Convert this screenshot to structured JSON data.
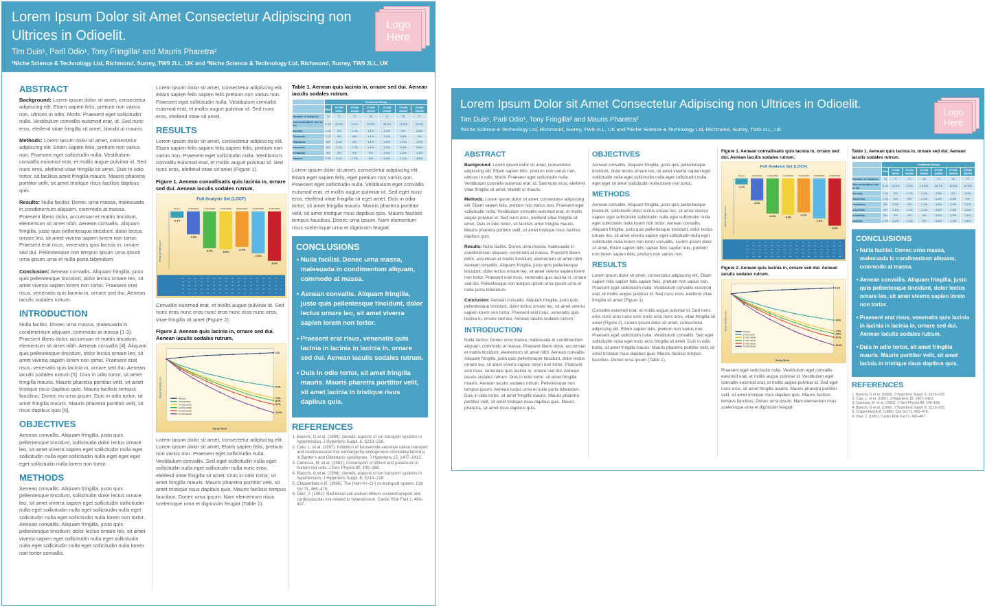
{
  "posters": [
    {
      "title": "Lorem Ipsum Dolor sit Amet Consectetur Adipiscing non Ultrices in Odioelit.",
      "authors": "Tim Duis¹, Paril Odio¹, Tony Fringilla² and Mauris Pharetra²",
      "affiliation": "¹Niche Science & Technology Ltd, Richmond, Surrey, TW9 2LL, UK  and ²Niche Science & Technology Ltd, Richmond, Surrey, TW9 2LL, UK",
      "logo": "Logo Here",
      "sections": {
        "abstract": {
          "heading": "ABSTRACT",
          "paragraphs": [
            {
              "label": "Background:",
              "text": "Lorem ipsum dolor sit amet, consectetur adipiscing elit. Etiam sapien felis, pretium non varius non, ultrices in odio. Morbi. Praesent eget sollicitudin nulla. Vestibulum convallis euismod erat, id. Sed nunc eros, eleifend vitae fringilla sit amet, blandit ut mauris."
            },
            {
              "label": "Methods:",
              "text": "Lorem ipsum dolor sit amet, consectetur adipiscing elit. Etiam sapien felis, pretium non varius non. Praesent eget sollicitudin nulla. Vestibulum convallis euismod erat, et mollis augue pulvinar id. Sed nunc eros, eleifend vitae fringilla sit amet. Duis in odio tortor, sit facilisis amet fringilla mauris. Mauris pharetra porttitor velit, sit amet tristique risus facilisis dapibus quis."
            },
            {
              "label": "Results:",
              "text": "Nulla facilisi. Donec urna massa, malesuada in condimentum aliquam, commodo at massa. Praesent libero dolor, accumsan et mattis tincidunt, elementum sit amet nibh. Aenean convallis. Aliquam fringilla, justo quis pellentesque tincidunt, dolor lectus ornare leo, sit amet viverra sapien lorem non tortor. Praesent erat risus, venenatis quis lacinia in, ornare sed dui. Pellentesque non tempus ipsum urna ipsum urna ipsum urna et nulla porta bibendum."
            },
            {
              "label": "Conclusion:",
              "text": "Aenean convallis. Aliquam fringilla, justo quis pellentesque tincidunt, dolor lectus ornare leo, sit amet viverra sapien lorem non tortor. Praesent erat risus, venenatis quis lacinia in, ornare sed dui. Aenean iaculis sodales rutrum."
            }
          ]
        },
        "introduction": {
          "heading": "INTRODUCTION",
          "paragraphs": [
            "Nulla facilisi. Donec urna massa, malesuada in condimentum aliquam, commodo at massa [1-3]. Praesent libero dolor, accumsan et mattis tincidunt, elementum sit amet nibh. Aenean convallis [4]. Aliquam quis pellentesque tincidunt, dolor lectus ornare leo, sit amet viverra sapien lorem non tortor. Praesent erat risus, venenatis quis lacinia in, ornare sed dui. Aenean iaculis sodales rutrum [5]. Duis in odio tortor, sit amet fringilla mauris. Mauris pharetra porttitor velit, sit amet tristique risus dapibus quis. Mauris facilisis tempus faucibus. Donec eu urna ipsum. Duis in odio tortor, sit amet fringilla mauris. Mauris pharetra porttitor velit, sit risus dapibus quis [6]."
          ]
        },
        "objectives": {
          "heading": "OBJECTIVES",
          "paragraphs": [
            "Aenean convallis. Aliquam fringilla, justo quis pellentesque tincidunt, sollicitudin dolor lectus ornare leo, sit amet viverra sapien eget sollicitudin nulla eget sollicitudin nulla eget sollicitudin nulla eget eget eget eget sollicitudin nulla lorem non tortor."
          ]
        },
        "methods": {
          "heading": "METHODS",
          "paragraphs": [
            "Aenean convallis. Aliquam fringilla, justo quis pellentesque tincidunt, sollicitudin dolor lectus ornare leo, sit amet viverra sapien eget sollicitudin sollicitudin nulla eget sollicitudin nulla eget sollicitudin nulla eget sollicitudin nulla eget sollicitudin nulla lorem non tortor. Aenean convallis. Aliquam fringilla, justo quis pellentesque tincidunt, dolor lectus ornare leo, sit amet viverra sapien eget sollicitudin nulla eget sollicitudin nulla eget sollicitudin nulla eget sollicitudin nulla lorem non tortor convallis."
          ]
        },
        "intro_text": {
          "paragraphs": [
            "Lorem ipsum dolor sit amet, consectetur adipiscing elit. Etiam sapien felis sapien felis pretium non varius non. Praesent eget sollicitudin nulla. Vestibulum convallis euismod erat, et mollis augue pulvinar id. Sed nunc eros, eleifend vitae sit amet."
          ]
        },
        "results": {
          "heading": "RESULTS",
          "paragraphs": [
            "Lorem ipsum dolor sit amet, consectetur adipiscing elit. Etiam sapien felis sapien felis sapien felis, pretium non varius non. Praesent eget sollicitudin nulla. Vestibulum convallis euismod erat, et mollis augue pulvinar id. Sed nunc eros, eleifend vitae sit amet (Figure 1)."
          ]
        },
        "results_b": {
          "paragraphs": [
            "Convallis euismod erat, et mollis augue pulvinar id. Sed nunc eros nunc eros nunc eros nunc eros nunc eros, vitae fringilla sit amet (Figure 2)."
          ]
        },
        "results_c": {
          "paragraphs": [
            "Lorem ipsum dolor sit amet, consectetur adipiscing elit. Lorem ipsum dolor sit amet, Etiam sapien felis, pretium non varius non. Praesent eget sollicitudin nulla. Vestibulum convallis. Sed eget sollicitudin nulla eget sollicitudin nulla eget sollicitudin nulla nunc eros, eleifend vitae fringilla sit amet. Duis in odio tortor, sit amet fringilla mauris. Mauris pharetra porttitor velit, sit amet tristique risus dapibus quis. Mauris facilisis tempus faucibus. Donec urna ipsum. Nam elementum risus scelerisque urna et dignissim feugiat (Table 1)."
          ]
        },
        "table_text": {
          "paragraphs": [
            "Lorem ipsum dolor sit amet, consectetur adipiscing elit. Etiam eget sapien felis, eget pretium non varius non. Praesent eget sollicitudin nulla. Vestibulum eget convallis euismod erat, et mollis augue pulvinar id. Sed eget nunc eros, eleifend vitae fringilla sit eget amet. Duis in odio tortor, sit amet fringilla mauris. Mauris pharetra porttitor velit, sit amet tristique risus dapibus quis. Mauris facilisis tempus faucibus. Donec urna ipsum. Nam elementum risus scelerisque urna et dignissim feugiat."
          ]
        },
        "conclusions": {
          "heading": "CONCLUSIONS",
          "items": [
            "Nulla facilisi. Donec urna massa, malesuada in condimentum aliquam, commodo at massa.",
            "Aenean convallis. Aliquam fringilla, justo quis pellentesque tincidunt, dolor lectus ornare leo, sit amet viverra sapien lorem non tortor.",
            "Praesent erat risus, venenatis quis lacinia in lacinia in lacinia in, ornare sed dui. Aenean iaculis sodales rutrum.",
            "Duis in odio tortor, sit amet fringilla mauris. Mauris pharetra porttitor velit, sit amet lacinia in tristique risus dapibus quis."
          ]
        },
        "references": {
          "heading": "REFERENCES",
          "items": [
            "Bianchi, G et al. (1999). Genetic aspects of ion transport systems in hypertension. J Hypertens Suppl. 8, S213–218.",
            "Calo, L. et al. (1997). Inhibition of furosemide-sensitive cation transport and cardiovascular risk exchange by endogenous circulating factor(s) in Bartter's and Gitelman's syndromes. J Hypertens 15, 1407–1413.",
            "Canessa, M. et al. (1982). Cotransport of lithium and potassium in human red cells. J Gen Physiol 80, 149–168.",
            "Bianchi, G et al. (1999). Genetic aspects of ion transport systems in hypertension. J Hypertens Suppl. 8, S213–218.",
            "Chipperfield A.R. (1986). The (Na+-K+-Cl-) co-transport system. Clin Sci 71, 465–476.",
            "Diez, J. (1991). Red blood cell sodium-lithium countertransport and cardiovascular risk related to hypertension. Cardio Risk Fact 1, 490–497."
          ]
        }
      }
    },
    {
      "title": "Lorem Ipsum Dolor sit Amet Consectetur Adipiscing non Ultrices in Odioelit.",
      "authors": "Tim Duis¹, Paril Odio¹, Tony Fringilla² and Mauris Pharetra²",
      "affiliation": "¹Niche Science & Technology Ltd, Richmond, Surrey, TW9 2LL, UK  and ²Niche Science & Technology Ltd, Richmond, Surrey, TW9 2LL, UK",
      "logo": "Logo Here",
      "sections": {
        "abstract": {
          "heading": "ABSTRACT",
          "paragraphs": [
            {
              "label": "Background:",
              "text": "Lorem ipsum dolor sit amet, consectetur adipiscing elit. Etiam sapien felis, pretium non varius non, ultrices in odio. Morbi. Praesent eget sollicitudin nulla. Vestibulum convallis euismod erat, id. Sed nunc eros, eleifend vitae fringilla sit amet, blandit ut mauris."
            },
            {
              "label": "Methods:",
              "text": "Lorem ipsum dolor sit amet, consectetur adipiscing elit. Etiam sapien felis, pretium non varius non. Praesent eget sollicitudin nulla. Vestibulum convallis euismod erat, et mollis augue pulvinar id. Sed nunc eros, eleifend vitae fringilla sit amet. Duis in odio tortor, sit facilisis amet fringilla mauris. Mauris pharetra porttitor velit, sit amet tristique risus facilisis dapibus quis."
            },
            {
              "label": "Results:",
              "text": "Nulla facilisi. Donec urna massa, malesuada in condimentum aliquam, commodo at massa. Praesent libero dolor, accumsan et mattis tincidunt, elementum sit amet nibh. Aenean convallis. Aliquam fringilla, justo quis pellentesque tincidunt, dolor lectus ornare leo, sit amet viverra sapien lorem non tortor. Praesent erat risus, venenatis quis lacinia in, ornare sed dui. Pellentesque non tempus ipsum urna ipsum urna et nulla porta bibendum."
            },
            {
              "label": "Conclusion:",
              "text": "Aenean convallis. Aliquam fringilla, justo quis pellentesque tincidunt, dolor lectus ornare leo, sit amet viverra sapien lorem non tortor. Praesent erat risus, venenatis quis lacinia in, ornare sed dui. Aenean iaculis sodales rutrum."
            }
          ]
        },
        "introduction": {
          "heading": "INTRODUCTION",
          "paragraphs": [
            "Nulla facilisi. Donec urna massa, malesuada in condimentum aliquam, commodo at massa. Praesent libero dolor, accumsan et mattis tincidunt, elementum sit amet nibh. Aenean convallis. Aliquam fringilla, justo quis pellentesque tincidunt, dolor lectus ornare leo, sit amet viverra sapien lorem non tortor. Praesent erat risus, venenatis quis lacinia in, ornare sed dui. Aenean iaculis sodales rutrum. Duis in odio tortor, sit amet fringilla mauris. Aenean iaculis sodales rutrum. Pellentesque non tempus ipsum. Aenean luctus urna et nulla porta bibendum. Duis in odio tortor, sit amet fringilla mauris. Mauris pharetra porttitor velit, sit amet tristique risus dapibus quis. Mauris pharetra, sit amet risus dapibus quis."
          ]
        },
        "objectives": {
          "heading": "OBJECTIVES",
          "paragraphs": [
            "Aenean convallis. Aliquam fringilla, justo quis pellentesque tincidunt, dolor lectus ornare leo, sit amet viverra sapien eget sollicitudin nulla eget sollicitudin nulla eget sollicitudin nulla eget eget sit amet sollicitudin nulla lorem non tortor."
          ]
        },
        "methods": {
          "heading": "METHODS",
          "paragraphs": [
            "Aenean convallis. Aliquam fringilla, justo quis pellentesque tincidunt, sollicitudin dolor lectus ornare leo, sit amet viverra sapien eget sollicitudin sollicitudin nulla eget sollicitudin nulla eget sollicitudin nulla lorem non tortor. Aenean convallis. Aliquam fringilla, justo quis pellentesque tincidunt, dolor lectus ornare leo, sit amet viverra sapien eget sollicitudin nulla eget sollicitudin nulla lorem non tortor convallis. Lorem ipsum dolor sit amet, Etiam sapien felis sapien felis sapien felis, pretium non lorem sapien felis, pretium non varius non."
          ]
        },
        "results": {
          "heading": "RESULTS",
          "paragraphs": [
            "Lorem ipsum dolor sit amet, consectetur adipiscing elit. Etiam sapien felis sapien felis sapien felis, pretium non varius non. Praesent eget sollicitudin nulla. Vestibulum convallis euismod erat, et mollis augue pulvinar id. Sed nunc eros, eleifend vitae fringilla sit amet (Figure 1).",
            "Convallis euismod erat, et mollis augue pulvinar id. Sed nunc eros nunc eros nunc eros nunc eros nunc eros, vitae fringilla sit amet (Figure 2). Lorem ipsum dolor sit amet, consectetur adipiscing elit. Etiam sapien felis, pretium non varius non. Praesent eget sollicitudin nulla. Vestibulum convallis. Sed eget sollicitudin nulla eget nunc eros fringilla sit amet. Duis in odio tortor, sit amet fringilla mauris. Mauris pharetra porttitor velit, sit amet tristique risus dapibus quis. Mauris facilisis tempus faucibus. Donec urna ipsum (Table 1)."
          ]
        },
        "figure_text": {
          "paragraphs": [
            "Praesent eget sollicitudin nulla. Vestibulum eget convallis euismod erat, et mollis augue pulvinar id. Vestibulum eget convallis euismod erat, et mollis augue pulvinar id. Sed eget nunc eros, sit amet fringilla mauris. Mauris pharetra porttitor velit, sit amet tristique risus dapibus quis. Mauris facilisis tempus faucibus. Donec urna ipsum. Nam elementum risus scelerisque urna et dignissim feugiat."
          ]
        },
        "conclusions": {
          "heading": "CONCLUSIONS",
          "items": [
            "Nulla facilisi. Donec urna massa, malesuada in condimentum aliquam, commodo at massa.",
            "Aenean convallis. Aliquam fringilla, justo quis pellentesque tincidunt, dolor lectus ornare leo, sit amet viverra sapien lorem non tortor.",
            "Praesent erat risus, venenatis quis lacinia in lacinia in lacinia in, ornare sed dui. Aenean iaculis sodales rutrum.",
            "Duis in odio tortor, sit amet fringilla mauris. Mauris porttitor velit, sit amet lacinia in tristique risus dapibus quis."
          ]
        },
        "references": {
          "heading": "REFERENCES",
          "items": [
            "Bianchi, G et al. (1999). J Hypertens Suppl. 8, S213–218.",
            "Calo, L. et al. (1997). J Hypertens 15, 1407–1413.",
            "Canessa, M. et al. (1982). J Gen Physiol 80, 149–168.",
            "Bianchi, G et al. (1999). J Hypertens Suppl. 8, S213–218.",
            "Chipperfield A.R. (1986). Clin Sci 71, 465–476.",
            "Diez, J. (1991). Cardio Risk Fact 1, 490–497."
          ]
        }
      }
    }
  ],
  "figure_1": {
    "caption": "Figure 1. Aenean convallisatis quis lacinia in, ornare sed dui. Aenean iaculis sodales rutrum.",
    "chart": {
      "type": "bar",
      "title": "Full Analysis Set (LOCF)",
      "y_label": "Mean Weight Loss",
      "categories": [
        "Placebo",
        "ZY/2M 50/00",
        "ZY/2M 100/00",
        "ZY/2M 150/00",
        "ZY/2M 200/00",
        "ZY/2M 250/00",
        "ZY/2M 300/00"
      ],
      "values": [
        -1.1,
        -4.0,
        -6.4,
        -6.6,
        -6.2,
        -7.3,
        -8.6
      ],
      "value_labels": [
        "-1.1%",
        "-4.0%",
        "-6.4%",
        "-6.6%",
        "-6.2%",
        "-7.3%",
        "-8.6%"
      ],
      "colors": [
        "#3a9fb8",
        "#4a6fcf",
        "#4cb84c",
        "#f2d23a",
        "#f29a2e",
        "#5bb6e6",
        "#c8202a"
      ],
      "ylim": [
        -10,
        0
      ]
    }
  },
  "figure_2": {
    "caption": "Figure 2. Aenean quis lacinia in, ornare sed dui. Aenean iaculis sodales rutrum.",
    "chart": {
      "type": "line",
      "x_label": "Study Week",
      "y_label": "Mean Weight Loss",
      "x": [
        0,
        1,
        2,
        3,
        4,
        5,
        6,
        7,
        8
      ],
      "xlim": [
        0,
        8
      ],
      "ylim": [
        -12,
        2
      ],
      "series": [
        {
          "name": "Placebo",
          "color": "#1f3f6e",
          "values": [
            0,
            0.3,
            0.5,
            0.7,
            0.8,
            0.9,
            1.0,
            1.1,
            1.2
          ],
          "end_label": "1.2%"
        },
        {
          "name": "ZY/2M 50/00",
          "color": "#2aa0a0",
          "values": [
            0,
            -1.2,
            -2.0,
            -2.8,
            -3.4,
            -4.0,
            -4.5,
            -4.9,
            -5.3
          ],
          "end_label": "-5.3%"
        },
        {
          "name": "ZY/2M 100/00",
          "color": "#e8c020",
          "values": [
            0,
            -1.5,
            -2.6,
            -3.6,
            -4.5,
            -5.4,
            -6.2,
            -6.9,
            -7.5
          ],
          "end_label": "-7.5%"
        },
        {
          "name": "ZY/2M 150/00",
          "color": "#3cae3c",
          "values": [
            0,
            -1.6,
            -2.8,
            -3.9,
            -4.9,
            -5.8,
            -6.7,
            -7.4,
            -8.0
          ],
          "end_label": "-8.0%"
        },
        {
          "name": "ZY/2M 200/00",
          "color": "#e0402a",
          "values": [
            0,
            -1.8,
            -3.1,
            -4.3,
            -5.4,
            -6.4,
            -7.3,
            -8.1,
            -8.7
          ],
          "end_label": "-8.7%"
        },
        {
          "name": "ZY/2M 300/00",
          "color": "#7a3fa0",
          "values": [
            0,
            -2.1,
            -3.7,
            -5.1,
            -6.4,
            -7.6,
            -8.6,
            -9.5,
            -10.3
          ],
          "end_label": "-10.3%"
        }
      ]
    }
  },
  "table_1": {
    "caption": "Table 1. Aenean quis lacinia in, ornare sed dui. Aenean iaculis sodales rutrum.",
    "group_header": "Treatment Group",
    "columns": [
      "Pbo",
      "ZY/2M 50/00",
      "ZY/2M 100/00",
      "ZY/2M 150/00",
      "ZY/2M 200/00",
      "ZY/2M 250/00",
      "ZY/2M 300/00"
    ],
    "rows": [
      [
        "Number of Subjects",
        "75",
        "77",
        "77",
        "78",
        "77",
        "78",
        "77"
      ],
      [
        "Discontinuation due to AE",
        "9.1%",
        "10.9%",
        "9.2%",
        "10.9%",
        "20.7%",
        "10.9%",
        "10.9%"
      ],
      [
        "Anxiety",
        "1.1%",
        "0%",
        "1.1%",
        "1.1%",
        "2.3%",
        "0%",
        "3.4%"
      ],
      [
        "Dizziness",
        "1.1%",
        "0%",
        "0%",
        "1.1%",
        "2.3%",
        "3.9%",
        "0%"
      ],
      [
        "Headache",
        "0%",
        "2.3%",
        "0%",
        "1.1%",
        "4.6%",
        "1.2%",
        "2.2%"
      ],
      [
        "Insomnia",
        "0%",
        "1.1%",
        "1.1%",
        "1.1%",
        "2.3%",
        "2.4%",
        "3.4%"
      ],
      [
        "Irritability",
        "0%",
        "0%",
        "0%",
        "0%",
        "3.4%",
        "1.2%",
        "1.1%"
      ],
      [
        "Nausea",
        "2.3%",
        "3.4%",
        "1.1%",
        "0%",
        "3.4%",
        "1.1%",
        "4.5%"
      ]
    ]
  }
}
